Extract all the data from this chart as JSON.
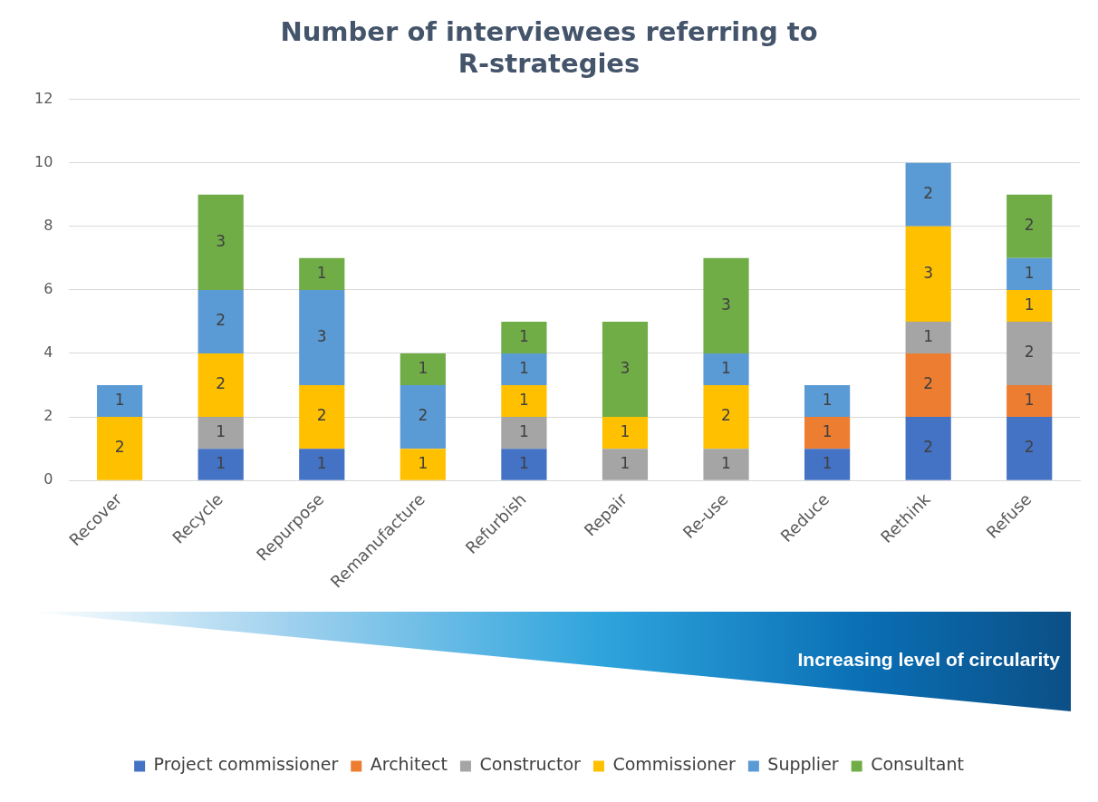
{
  "chart_data": {
    "type": "bar",
    "title": "Number of interviewees referring to R-strategies",
    "categories": [
      "Recover",
      "Recycle",
      "Repurpose",
      "Remanufacture",
      "Refurbish",
      "Repair",
      "Re-use",
      "Reduce",
      "Rethink",
      "Refuse"
    ],
    "series": [
      {
        "name": "Project commissioner",
        "color": "#4472c4",
        "values": [
          null,
          1,
          1,
          null,
          1,
          null,
          null,
          1,
          2,
          2
        ]
      },
      {
        "name": "Architect",
        "color": "#ed7d31",
        "values": [
          null,
          null,
          null,
          null,
          null,
          null,
          null,
          1,
          2,
          1
        ]
      },
      {
        "name": "Constructor",
        "color": "#a5a5a5",
        "values": [
          null,
          1,
          null,
          null,
          1,
          1,
          1,
          null,
          1,
          2
        ]
      },
      {
        "name": "Commissioner",
        "color": "#ffc000",
        "values": [
          2,
          2,
          2,
          1,
          1,
          1,
          2,
          null,
          3,
          1
        ]
      },
      {
        "name": "Supplier",
        "color": "#5b9bd5",
        "values": [
          1,
          2,
          3,
          2,
          1,
          null,
          1,
          1,
          2,
          1
        ]
      },
      {
        "name": "Consultant",
        "color": "#70ad47",
        "values": [
          null,
          3,
          1,
          1,
          1,
          3,
          3,
          null,
          null,
          2
        ]
      }
    ],
    "stacked": true,
    "ylim": [
      0,
      12
    ],
    "yticks": [
      0,
      2,
      4,
      6,
      8,
      10,
      12
    ],
    "grid": "y",
    "legend": "bottom",
    "data_labels": true,
    "annotations": [
      "Increasing level of circularity"
    ]
  }
}
